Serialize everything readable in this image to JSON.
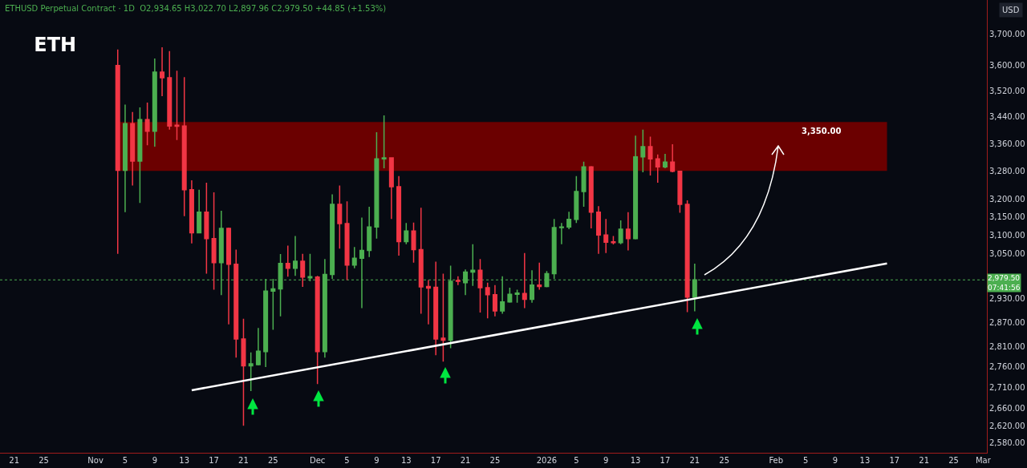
{
  "chart_data": {
    "type": "candlestick",
    "title": "ETH",
    "subtitle": "ETHUSD Perpetual Contract · 1D  O2,934.65 H3,022.70 L2,897.96 C2,979.50 +44.85 (+1.53%)",
    "ylabel": "USD",
    "x": [
      "2025-11-04",
      "2025-11-05",
      "2025-11-06",
      "2025-11-07",
      "2025-11-08",
      "2025-11-09",
      "2025-11-10",
      "2025-11-11",
      "2025-11-12",
      "2025-11-13",
      "2025-11-14",
      "2025-11-15",
      "2025-11-16",
      "2025-11-17",
      "2025-11-18",
      "2025-11-19",
      "2025-11-20",
      "2025-11-21",
      "2025-11-22",
      "2025-11-23",
      "2025-11-24",
      "2025-11-25",
      "2025-11-26",
      "2025-11-27",
      "2025-11-28",
      "2025-11-29",
      "2025-11-30",
      "2025-12-01",
      "2025-12-02",
      "2025-12-03",
      "2025-12-04",
      "2025-12-05",
      "2025-12-06",
      "2025-12-07",
      "2025-12-08",
      "2025-12-09",
      "2025-12-10",
      "2025-12-11",
      "2025-12-12",
      "2025-12-13",
      "2025-12-14",
      "2025-12-15",
      "2025-12-16",
      "2025-12-17",
      "2025-12-18",
      "2025-12-19",
      "2025-12-20",
      "2025-12-21",
      "2025-12-22",
      "2025-12-23",
      "2025-12-24",
      "2025-12-25",
      "2025-12-26",
      "2025-12-27",
      "2025-12-28",
      "2025-12-29",
      "2025-12-30",
      "2025-12-31",
      "2026-01-01",
      "2026-01-02",
      "2026-01-03",
      "2026-01-04",
      "2026-01-05",
      "2026-01-06",
      "2026-01-07",
      "2026-01-08",
      "2026-01-09",
      "2026-01-10",
      "2026-01-11",
      "2026-01-12",
      "2026-01-13",
      "2026-01-14",
      "2026-01-15",
      "2026-01-16",
      "2026-01-17",
      "2026-01-18",
      "2026-01-19",
      "2026-01-20",
      "2026-01-21"
    ],
    "ohlc": [
      [
        3600,
        3651,
        3049,
        3282
      ],
      [
        3282,
        3478,
        3163,
        3420
      ],
      [
        3420,
        3455,
        3238,
        3309
      ],
      [
        3309,
        3469,
        3189,
        3432
      ],
      [
        3432,
        3484,
        3355,
        3397
      ],
      [
        3397,
        3622,
        3351,
        3579
      ],
      [
        3579,
        3658,
        3504,
        3561
      ],
      [
        3561,
        3646,
        3402,
        3413
      ],
      [
        3415,
        3583,
        3371,
        3412
      ],
      [
        3413,
        3563,
        3152,
        3226
      ],
      [
        3226,
        3253,
        3077,
        3106
      ],
      [
        3106,
        3226,
        3104,
        3163
      ],
      [
        3163,
        3246,
        2996,
        3090
      ],
      [
        3090,
        3219,
        2954,
        3025
      ],
      [
        3025,
        3167,
        2940,
        3118
      ],
      [
        3118,
        3120,
        2865,
        3021
      ],
      [
        3021,
        3060,
        2782,
        2828
      ],
      [
        2828,
        2879,
        2620,
        2762
      ],
      [
        2762,
        2795,
        2701,
        2767
      ],
      [
        2765,
        2856,
        2763,
        2798
      ],
      [
        2797,
        2982,
        2759,
        2950
      ],
      [
        2950,
        2982,
        2851,
        2956
      ],
      [
        2956,
        3048,
        2885,
        3023
      ],
      [
        3023,
        3071,
        2988,
        3010
      ],
      [
        3010,
        3097,
        2990,
        3029
      ],
      [
        3029,
        3049,
        2961,
        2987
      ],
      [
        2985,
        3049,
        2976,
        2988
      ],
      [
        2987,
        2990,
        2718,
        2797
      ],
      [
        2797,
        3035,
        2782,
        2994
      ],
      [
        2994,
        3213,
        2982,
        3185
      ],
      [
        3185,
        3238,
        3063,
        3131
      ],
      [
        3131,
        3193,
        2979,
        3019
      ],
      [
        3019,
        3067,
        3010,
        3037
      ],
      [
        3037,
        3148,
        2906,
        3058
      ],
      [
        3058,
        3178,
        3040,
        3122
      ],
      [
        3122,
        3394,
        3090,
        3315
      ],
      [
        3315,
        3445,
        3288,
        3318
      ],
      [
        3318,
        3320,
        3144,
        3235
      ],
      [
        3235,
        3265,
        3044,
        3082
      ],
      [
        3082,
        3133,
        3075,
        3111
      ],
      [
        3111,
        3134,
        3025,
        3060
      ],
      [
        3060,
        3175,
        2892,
        2961
      ],
      [
        2962,
        2979,
        2865,
        2958
      ],
      [
        2960,
        3028,
        2788,
        2828
      ],
      [
        2830,
        2996,
        2772,
        2825
      ],
      [
        2825,
        3017,
        2805,
        2976
      ],
      [
        2978,
        2989,
        2966,
        2976
      ],
      [
        2972,
        3007,
        2940,
        3000
      ],
      [
        3000,
        3075,
        2964,
        3005
      ],
      [
        3005,
        3035,
        2895,
        2959
      ],
      [
        2959,
        2972,
        2880,
        2941
      ],
      [
        2941,
        2966,
        2885,
        2899
      ],
      [
        2899,
        2989,
        2892,
        2922
      ],
      [
        2922,
        2959,
        2920,
        2942
      ],
      [
        2942,
        2954,
        2920,
        2945
      ],
      [
        2944,
        3051,
        2906,
        2929
      ],
      [
        2929,
        3005,
        2920,
        2966
      ],
      [
        2966,
        3025,
        2954,
        2962
      ],
      [
        2962,
        3003,
        2960,
        2996
      ],
      [
        2996,
        3144,
        2982,
        3120
      ],
      [
        3120,
        3133,
        3075,
        3122
      ],
      [
        3122,
        3164,
        3116,
        3143
      ],
      [
        3143,
        3265,
        3133,
        3221
      ],
      [
        3221,
        3307,
        3178,
        3292
      ],
      [
        3292,
        3294,
        3118,
        3163
      ],
      [
        3163,
        3180,
        3049,
        3100
      ],
      [
        3100,
        3144,
        3051,
        3080
      ],
      [
        3081,
        3097,
        3074,
        3079
      ],
      [
        3079,
        3140,
        3075,
        3116
      ],
      [
        3116,
        3163,
        3058,
        3090
      ],
      [
        3090,
        3384,
        3088,
        3321
      ],
      [
        3321,
        3402,
        3276,
        3351
      ],
      [
        3351,
        3381,
        3267,
        3315
      ],
      [
        3315,
        3328,
        3246,
        3292
      ],
      [
        3292,
        3330,
        3288,
        3306
      ],
      [
        3306,
        3358,
        3276,
        3279
      ],
      [
        3279,
        3281,
        3161,
        3185
      ],
      [
        3185,
        3196,
        2896,
        2934.65
      ],
      [
        2934.65,
        3022.7,
        2897.96,
        2979.5
      ]
    ],
    "colors": [
      "#f23645",
      "#4caf50",
      "#f23645",
      "#4caf50",
      "#f23645",
      "#4caf50",
      "#f23645",
      "#f23645",
      "#f23645",
      "#f23645",
      "#f23645",
      "#4caf50",
      "#f23645",
      "#f23645",
      "#4caf50",
      "#f23645",
      "#f23645",
      "#f23645",
      "#4caf50",
      "#4caf50",
      "#4caf50",
      "#4caf50",
      "#4caf50",
      "#f23645",
      "#4caf50",
      "#f23645",
      "#4caf50",
      "#f23645",
      "#4caf50",
      "#4caf50",
      "#f23645",
      "#f23645",
      "#4caf50",
      "#4caf50",
      "#4caf50",
      "#4caf50",
      "#4caf50",
      "#f23645",
      "#f23645",
      "#4caf50",
      "#f23645",
      "#f23645",
      "#f23645",
      "#f23645",
      "#f23645",
      "#4caf50",
      "#f23645",
      "#4caf50",
      "#4caf50",
      "#f23645",
      "#f23645",
      "#f23645",
      "#4caf50",
      "#4caf50",
      "#4caf50",
      "#f23645",
      "#4caf50",
      "#f23645",
      "#4caf50",
      "#4caf50",
      "#4caf50",
      "#4caf50",
      "#4caf50",
      "#4caf50",
      "#f23645",
      "#f23645",
      "#f23645",
      "#f23645",
      "#4caf50",
      "#f23645",
      "#4caf50",
      "#4caf50",
      "#f23645",
      "#f23645",
      "#4caf50",
      "#f23645",
      "#f23645",
      "#f23645",
      "#4caf50"
    ],
    "series": [
      {
        "type": "line",
        "x": [
          "2025-11-14",
          "2026-02-16"
        ],
        "values": [
          2703,
          3023
        ],
        "color": "#ffffff",
        "line_style": "solid"
      }
    ],
    "ref_lines": [
      {
        "axis": "y",
        "value": 2979.5,
        "label": "2,979.50",
        "color": "#4caf50",
        "line_style": "dotted"
      }
    ],
    "bands": [
      {
        "axis": "y",
        "from": 3280,
        "to": 3425,
        "color": "#6b0000"
      }
    ],
    "annotations": [
      "3,350.00",
      "07:41:56"
    ],
    "xlim": [
      "2025-10-19T02:00",
      "2026-03-01T12:00"
    ],
    "xticks": [
      {
        "value": "2025-10-21",
        "label": "21"
      },
      {
        "value": "2025-10-25",
        "label": "25"
      },
      {
        "value": "2025-11-01",
        "label": "Nov"
      },
      {
        "value": "2025-11-05",
        "label": "5"
      },
      {
        "value": "2025-11-09",
        "label": "9"
      },
      {
        "value": "2025-11-13",
        "label": "13"
      },
      {
        "value": "2025-11-17",
        "label": "17"
      },
      {
        "value": "2025-11-21",
        "label": "21"
      },
      {
        "value": "2025-11-25",
        "label": "25"
      },
      {
        "value": "2025-12-01",
        "label": "Dec"
      },
      {
        "value": "2025-12-05",
        "label": "5"
      },
      {
        "value": "2025-12-09",
        "label": "9"
      },
      {
        "value": "2025-12-13",
        "label": "13"
      },
      {
        "value": "2025-12-17",
        "label": "17"
      },
      {
        "value": "2025-12-21",
        "label": "21"
      },
      {
        "value": "2025-12-25",
        "label": "25"
      },
      {
        "value": "2026-01-01",
        "label": "2026"
      },
      {
        "value": "2026-01-05",
        "label": "5"
      },
      {
        "value": "2026-01-09",
        "label": "9"
      },
      {
        "value": "2026-01-13",
        "label": "13"
      },
      {
        "value": "2026-01-17",
        "label": "17"
      },
      {
        "value": "2026-01-21",
        "label": "21"
      },
      {
        "value": "2026-01-25",
        "label": "25"
      },
      {
        "value": "2026-02-01",
        "label": "Feb"
      },
      {
        "value": "2026-02-05",
        "label": "5"
      },
      {
        "value": "2026-02-09",
        "label": "9"
      },
      {
        "value": "2026-02-13",
        "label": "13"
      },
      {
        "value": "2026-02-17",
        "label": "17"
      },
      {
        "value": "2026-02-21",
        "label": "21"
      },
      {
        "value": "2026-02-25",
        "label": "25"
      },
      {
        "value": "2026-03-01",
        "label": "Mar"
      }
    ],
    "ylim": [
      2558,
      3814
    ],
    "yticks": [
      {
        "value": 2580,
        "label": "2,580.00"
      },
      {
        "value": 2620,
        "label": "2,620.00"
      },
      {
        "value": 2660,
        "label": "2,660.00"
      },
      {
        "value": 2710,
        "label": "2,710.00"
      },
      {
        "value": 2760,
        "label": "2,760.00"
      },
      {
        "value": 2810,
        "label": "2,810.00"
      },
      {
        "value": 2870,
        "label": "2,870.00"
      },
      {
        "value": 2930,
        "label": "2,930.00"
      },
      {
        "value": 3050,
        "label": "3,050.00"
      },
      {
        "value": 3100,
        "label": "3,100.00"
      },
      {
        "value": 3150,
        "label": "3,150.00"
      },
      {
        "value": 3200,
        "label": "3,200.00"
      },
      {
        "value": 3280,
        "label": "3,280.00"
      },
      {
        "value": 3360,
        "label": "3,360.00"
      },
      {
        "value": 3440,
        "label": "3,440.00"
      },
      {
        "value": 3520,
        "label": "3,520.00"
      },
      {
        "value": 3600,
        "label": "3,600.00"
      },
      {
        "value": 3700,
        "label": "3,700.00"
      }
    ],
    "log": "y",
    "grid": false
  }
}
